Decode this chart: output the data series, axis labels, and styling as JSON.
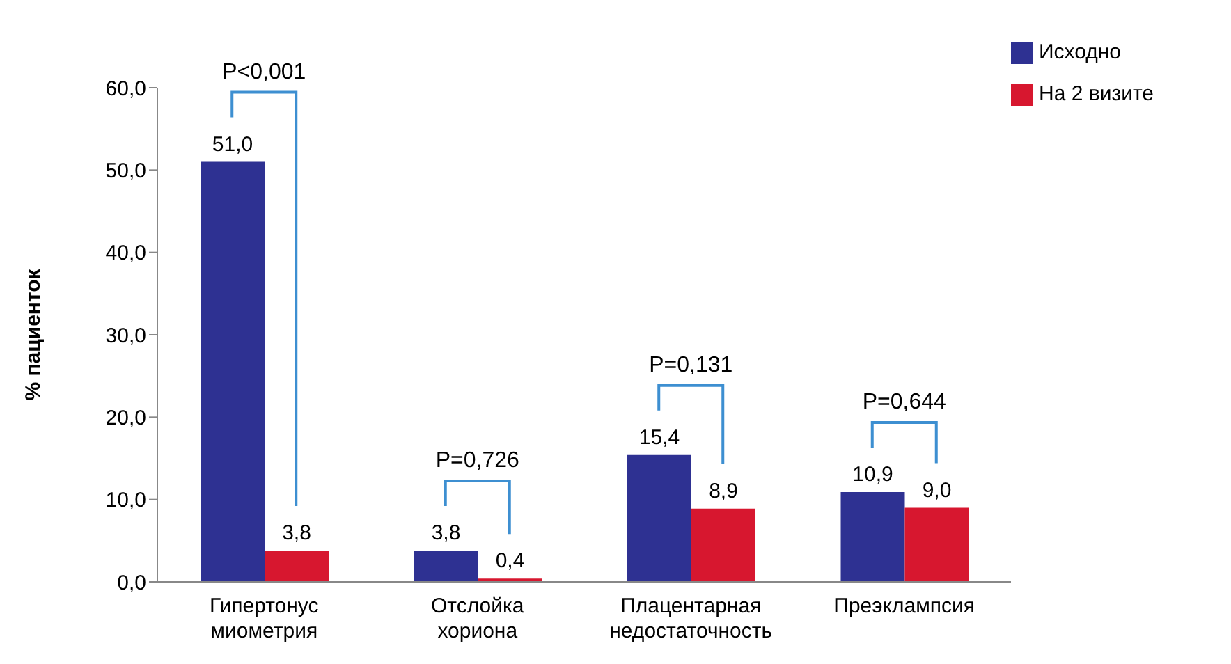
{
  "chart_data": {
    "type": "bar",
    "ylabel": "% пациенток",
    "categories": [
      "Гипертонус миометрия",
      "Отслойка хориона",
      "Плацентарная недостаточность",
      "Преэклампсия"
    ],
    "series": [
      {
        "name": "Исходно",
        "color": "#2e3192",
        "values": [
          51.0,
          3.8,
          15.4,
          10.9
        ],
        "value_labels": [
          "51,0",
          "3,8",
          "15,4",
          "10,9"
        ]
      },
      {
        "name": "На 2 визите",
        "color": "#d7172f",
        "values": [
          3.8,
          0.4,
          8.9,
          9.0
        ],
        "value_labels": [
          "3,8",
          "0,4",
          "8,9",
          "9,0"
        ]
      }
    ],
    "ylim": [
      0,
      60
    ],
    "yticks": [
      {
        "value": 0,
        "label": "0,0"
      },
      {
        "value": 10,
        "label": "10,0"
      },
      {
        "value": 20,
        "label": "20,0"
      },
      {
        "value": 30,
        "label": "30,0"
      },
      {
        "value": 40,
        "label": "40,0"
      },
      {
        "value": 50,
        "label": "50,0"
      },
      {
        "value": 60,
        "label": "60,0"
      }
    ],
    "annotations": [
      "P<0,001",
      "P=0,726",
      "P=0,131",
      "P=0,644"
    ],
    "grid": false,
    "legend": "top right"
  }
}
